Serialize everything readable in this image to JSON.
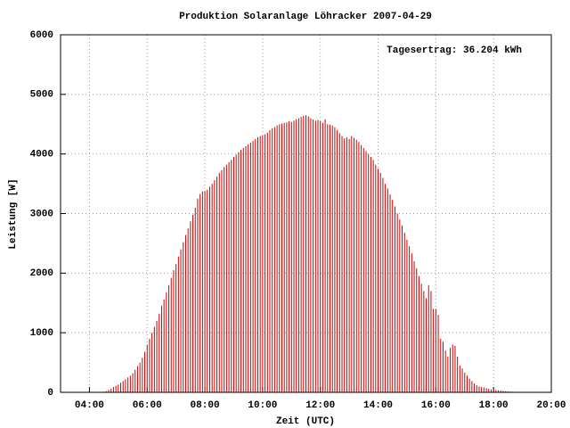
{
  "chart_data": {
    "type": "impulse",
    "title": "Produktion Solaranlage Löhracker 2007-04-29",
    "annotation": "Tagesertrag: 36.204 kWh",
    "xlabel": "Zeit (UTC)",
    "ylabel": "Leistung [W]",
    "color": "#cc0000",
    "grid": true,
    "xlim": [
      180,
      1200
    ],
    "ylim": [
      0,
      6000
    ],
    "xticks": [
      {
        "value": 240,
        "label": "04:00"
      },
      {
        "value": 360,
        "label": "06:00"
      },
      {
        "value": 480,
        "label": "08:00"
      },
      {
        "value": 600,
        "label": "10:00"
      },
      {
        "value": 720,
        "label": "12:00"
      },
      {
        "value": 840,
        "label": "14:00"
      },
      {
        "value": 960,
        "label": "16:00"
      },
      {
        "value": 1080,
        "label": "18:00"
      },
      {
        "value": 1200,
        "label": "20:00"
      }
    ],
    "yticks": [
      0,
      1000,
      2000,
      3000,
      4000,
      5000,
      6000
    ],
    "x": [
      270,
      275,
      280,
      285,
      290,
      295,
      300,
      305,
      310,
      315,
      320,
      325,
      330,
      335,
      340,
      345,
      350,
      355,
      360,
      365,
      370,
      375,
      380,
      385,
      390,
      395,
      400,
      405,
      410,
      415,
      420,
      425,
      430,
      435,
      440,
      445,
      450,
      455,
      460,
      465,
      470,
      475,
      480,
      485,
      490,
      495,
      500,
      505,
      510,
      515,
      520,
      525,
      530,
      535,
      540,
      545,
      550,
      555,
      560,
      565,
      570,
      575,
      580,
      585,
      590,
      595,
      600,
      605,
      610,
      615,
      620,
      625,
      630,
      635,
      640,
      645,
      650,
      655,
      660,
      665,
      670,
      675,
      680,
      685,
      690,
      695,
      700,
      705,
      710,
      715,
      720,
      725,
      730,
      735,
      740,
      745,
      750,
      755,
      760,
      765,
      770,
      775,
      780,
      785,
      790,
      795,
      800,
      805,
      810,
      815,
      820,
      825,
      830,
      835,
      840,
      845,
      850,
      855,
      860,
      865,
      870,
      875,
      880,
      885,
      890,
      895,
      900,
      905,
      910,
      915,
      920,
      925,
      930,
      935,
      940,
      945,
      950,
      955,
      960,
      965,
      970,
      975,
      980,
      985,
      990,
      995,
      1000,
      1005,
      1010,
      1015,
      1020,
      1025,
      1030,
      1035,
      1040,
      1045,
      1050,
      1055,
      1060,
      1065,
      1070,
      1075,
      1080,
      1085,
      1090,
      1095,
      1100,
      1105,
      1110,
      1115,
      1120,
      1125,
      1130,
      1135
    ],
    "values": [
      10,
      20,
      40,
      60,
      90,
      110,
      130,
      160,
      190,
      220,
      250,
      280,
      320,
      380,
      440,
      500,
      580,
      680,
      800,
      900,
      1000,
      1100,
      1200,
      1320,
      1450,
      1560,
      1680,
      1800,
      1920,
      2050,
      2150,
      2280,
      2400,
      2520,
      2640,
      2750,
      2870,
      2980,
      3100,
      3250,
      3330,
      3370,
      3380,
      3400,
      3450,
      3500,
      3560,
      3620,
      3680,
      3730,
      3780,
      3820,
      3860,
      3900,
      3950,
      3990,
      4030,
      4070,
      4100,
      4130,
      4160,
      4190,
      4220,
      4250,
      4280,
      4300,
      4310,
      4330,
      4360,
      4400,
      4430,
      4450,
      4480,
      4500,
      4510,
      4520,
      4530,
      4550,
      4540,
      4560,
      4580,
      4600,
      4620,
      4640,
      4650,
      4630,
      4600,
      4580,
      4560,
      4570,
      4550,
      4520,
      4580,
      4500,
      4490,
      4480,
      4450,
      4400,
      4350,
      4300,
      4260,
      4280,
      4250,
      4300,
      4270,
      4240,
      4200,
      4150,
      4100,
      4050,
      4000,
      3950,
      3900,
      3820,
      3750,
      3680,
      3600,
      3500,
      3420,
      3320,
      3230,
      3120,
      3000,
      2900,
      2800,
      2680,
      2560,
      2450,
      2330,
      2200,
      2080,
      1950,
      1820,
      1700,
      1580,
      1800,
      1700,
      1400,
      1400,
      1300,
      900,
      850,
      700,
      600,
      750,
      800,
      780,
      600,
      450,
      400,
      330,
      280,
      230,
      190,
      150,
      120,
      100,
      90,
      80,
      70,
      60,
      50,
      45,
      40,
      35,
      30,
      25,
      20,
      15,
      12,
      10,
      8,
      5,
      3
    ]
  }
}
